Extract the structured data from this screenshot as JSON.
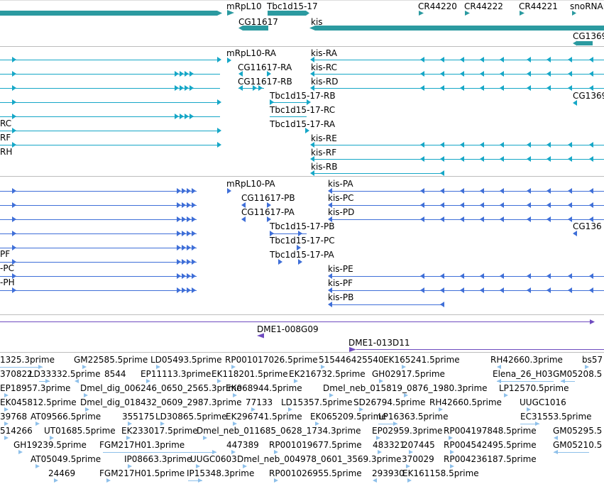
{
  "colors": {
    "gene": "#2b9aa0",
    "rna1": "#16a7c7",
    "rna2": "#3f6fd8",
    "clone": "#6e4bbf",
    "est": "#8ec0ea",
    "divider": "#bdbdbd"
  },
  "track_gene": {
    "labels": [
      "mRpL10",
      "Tbc1d15-17",
      "CG11617",
      "kis",
      "CR44220",
      "CR44222",
      "CR44221",
      "snoRNA:",
      "CG1369"
    ]
  },
  "track_rna_a": {
    "labels": [
      "mRpL10-RA",
      "kis-RA",
      "CG11617-RA",
      "kis-RC",
      "CG11617-RB",
      "kis-RD",
      "Tbc1d15-17-RB",
      "CG1369",
      "Tbc1d15-17-RC",
      "Tbc1d15-17-RA",
      "RC",
      "kis-RE",
      "RF",
      "kis-RF",
      "RH",
      "kis-RB"
    ]
  },
  "track_rna_b": {
    "labels": [
      "mRpL10-PA",
      "kis-PA",
      "CG11617-PB",
      "kis-PC",
      "CG11617-PA",
      "kis-PD",
      "Tbc1d15-17-PB",
      "CG136",
      "Tbc1d15-17-PC",
      "Tbc1d15-17-PA",
      "PF",
      "-PC",
      "kis-PE",
      "-PH",
      "kis-PF",
      "kis-PB"
    ]
  },
  "track_clone": {
    "labels": [
      "DME1-008G09",
      "DME1-013D11"
    ]
  },
  "track_est": {
    "labels": [
      "1325.3prime",
      "GM22585.5prime",
      "LD05493.5prime",
      "RP001017026.5prime",
      "515446425540",
      "EK165241.5prime",
      "RH42660.3prime",
      "bs57",
      "370822",
      "LD33332.5prime",
      "8544",
      "EP11113.3prime",
      "EK118201.5prime",
      "EK216732.5prime",
      "GH02917.5prime",
      "Elena_26_H03",
      "GM05208.5",
      "EP18957.3prime",
      "Dmel_dig_006246_0650_2565.3prime",
      "EK068944.5prime",
      "Dmel_neb_015819_0876_1980.3prime",
      "LP12570.5prime",
      "EK045812.5prime",
      "Dmel_dig_018432_0609_2987.3prime",
      "77133",
      "LD15357.5prime",
      "SD26794.5prime",
      "RH42660.5prime",
      "UUGC1016",
      "39768",
      "AT09566.5prime",
      "355175",
      "LD30865.5prime",
      "EK296741.5prime",
      "EK065209.5prime",
      "LP16363.5prime",
      "EC31553.5prime",
      "514266",
      "UT01685.5prime",
      "EK233017.5prime",
      "Dmel_neb_011685_0628_1734.3prime",
      "EP02959.3prime",
      "RP004197848.5prime",
      "GM05295.5",
      "GH19239.5prime",
      "FGM217H01.3prime",
      "447389",
      "RP001019677.5prime",
      "483321",
      "207445",
      "RP004542495.5prime",
      "GM05210.5",
      "AT05049.5prime",
      "IP08663.3prime",
      "UUGC0603",
      "Dmel_neb_004978_0601_3569.3prime",
      "370029",
      "RP004236187.5prime",
      "24469",
      "FGM217H01.5prime",
      "IP15348.3prime",
      "RP001026955.5prime",
      "293930",
      "EK161158.5prime"
    ]
  }
}
